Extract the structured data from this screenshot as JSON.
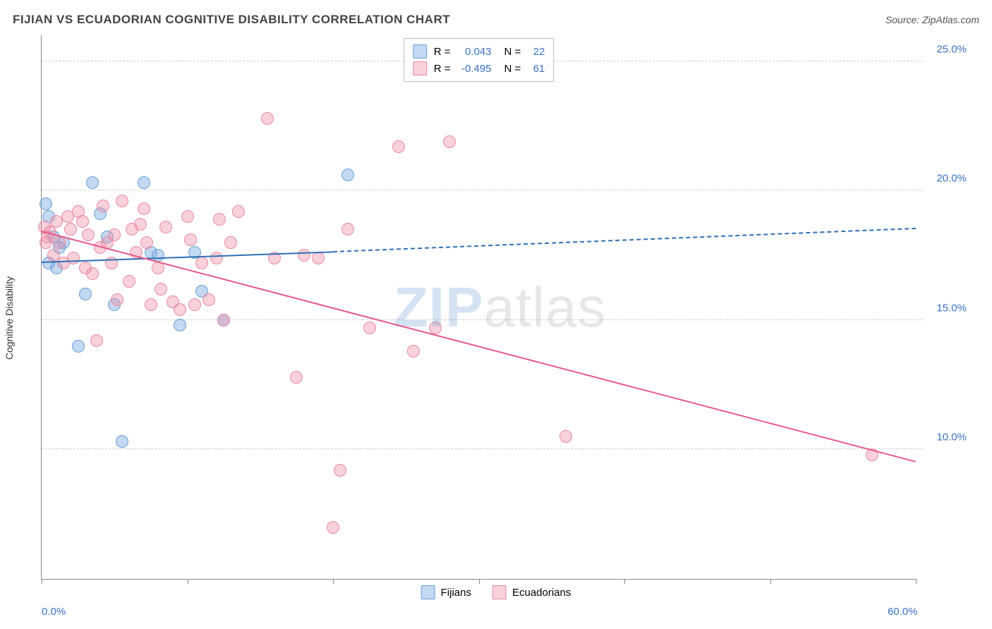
{
  "title": "FIJIAN VS ECUADORIAN COGNITIVE DISABILITY CORRELATION CHART",
  "source": "Source: ZipAtlas.com",
  "y_axis_label": "Cognitive Disability",
  "watermark": {
    "prefix": "ZIP",
    "suffix": "atlas"
  },
  "colors": {
    "series_a_fill": "rgba(120,170,225,0.45)",
    "series_a_stroke": "#6aa0d8",
    "series_b_fill": "rgba(240,140,165,0.40)",
    "series_b_stroke": "#e88aa3",
    "trend_a": "#2f6fb5",
    "trend_b": "#e75a88",
    "tick_text": "#3a72c4",
    "grid": "#cccccc"
  },
  "chart": {
    "type": "scatter",
    "xlim": [
      0,
      60
    ],
    "ylim": [
      5,
      26
    ],
    "x_ticks": [
      0,
      10,
      20,
      30,
      40,
      50,
      60
    ],
    "x_tick_labels_shown": {
      "0": "0.0%",
      "60": "60.0%"
    },
    "y_ticks": [
      10,
      15,
      20,
      25
    ],
    "y_tick_labels": [
      "10.0%",
      "15.0%",
      "20.0%",
      "25.0%"
    ],
    "series": [
      {
        "key": "a",
        "name": "Fijians",
        "R": "0.043",
        "N": "22",
        "trend": {
          "x1": 0,
          "y1": 17.2,
          "x2": 20,
          "y2": 17.6,
          "x2_dash": 60,
          "y2_dash": 18.5
        },
        "points": [
          [
            0.3,
            19.5
          ],
          [
            0.5,
            19.0
          ],
          [
            0.8,
            18.2
          ],
          [
            0.5,
            17.2
          ],
          [
            1.0,
            17.0
          ],
          [
            1.5,
            18.0
          ],
          [
            2.5,
            14.0
          ],
          [
            3.0,
            16.0
          ],
          [
            3.5,
            20.3
          ],
          [
            4.5,
            18.2
          ],
          [
            4.0,
            19.1
          ],
          [
            5.0,
            15.6
          ],
          [
            5.5,
            10.3
          ],
          [
            7.0,
            20.3
          ],
          [
            7.5,
            17.6
          ],
          [
            8.0,
            17.5
          ],
          [
            9.5,
            14.8
          ],
          [
            10.5,
            17.6
          ],
          [
            11.0,
            16.1
          ],
          [
            12.5,
            15.0
          ],
          [
            21.0,
            20.6
          ],
          [
            1.2,
            17.8
          ]
        ]
      },
      {
        "key": "b",
        "name": "Ecuadorians",
        "R": "-0.495",
        "N": "61",
        "trend": {
          "x1": 0,
          "y1": 18.4,
          "x2": 60,
          "y2": 9.5
        },
        "points": [
          [
            0.2,
            18.6
          ],
          [
            0.4,
            18.2
          ],
          [
            0.6,
            18.4
          ],
          [
            0.8,
            17.5
          ],
          [
            1.0,
            18.8
          ],
          [
            1.2,
            18.0
          ],
          [
            1.5,
            17.2
          ],
          [
            2.0,
            18.5
          ],
          [
            2.2,
            17.4
          ],
          [
            2.5,
            19.2
          ],
          [
            3.0,
            17.0
          ],
          [
            3.2,
            18.3
          ],
          [
            3.5,
            16.8
          ],
          [
            3.8,
            14.2
          ],
          [
            4.0,
            17.8
          ],
          [
            4.2,
            19.4
          ],
          [
            4.5,
            18.0
          ],
          [
            5.0,
            18.3
          ],
          [
            5.2,
            15.8
          ],
          [
            5.5,
            19.6
          ],
          [
            6.0,
            16.5
          ],
          [
            6.2,
            18.5
          ],
          [
            6.5,
            17.6
          ],
          [
            7.0,
            19.3
          ],
          [
            7.2,
            18.0
          ],
          [
            7.5,
            15.6
          ],
          [
            8.0,
            17.0
          ],
          [
            8.2,
            16.2
          ],
          [
            8.5,
            18.6
          ],
          [
            9.0,
            15.7
          ],
          [
            9.5,
            15.4
          ],
          [
            10.0,
            19.0
          ],
          [
            10.2,
            18.1
          ],
          [
            10.5,
            15.6
          ],
          [
            11.0,
            17.2
          ],
          [
            11.5,
            15.8
          ],
          [
            12.0,
            17.4
          ],
          [
            12.2,
            18.9
          ],
          [
            12.5,
            15.0
          ],
          [
            13.0,
            18.0
          ],
          [
            13.5,
            19.2
          ],
          [
            15.5,
            22.8
          ],
          [
            16.0,
            17.4
          ],
          [
            17.5,
            12.8
          ],
          [
            18.0,
            17.5
          ],
          [
            19.0,
            17.4
          ],
          [
            20.0,
            7.0
          ],
          [
            20.5,
            9.2
          ],
          [
            21.0,
            18.5
          ],
          [
            22.5,
            14.7
          ],
          [
            24.5,
            21.7
          ],
          [
            25.5,
            13.8
          ],
          [
            27.0,
            14.7
          ],
          [
            28.0,
            21.9
          ],
          [
            36.0,
            10.5
          ],
          [
            57.0,
            9.8
          ],
          [
            1.8,
            19.0
          ],
          [
            2.8,
            18.8
          ],
          [
            4.8,
            17.2
          ],
          [
            6.8,
            18.7
          ],
          [
            0.3,
            18.0
          ]
        ]
      }
    ]
  },
  "legend_bottom": [
    {
      "key": "a",
      "label": "Fijians"
    },
    {
      "key": "b",
      "label": "Ecuadorians"
    }
  ]
}
